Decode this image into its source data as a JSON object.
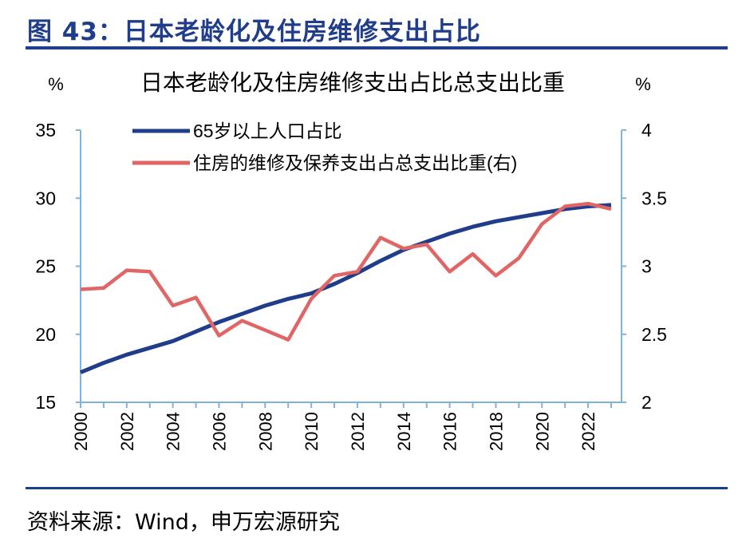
{
  "figure": {
    "title": "图 43：日本老龄化及住房维修支出占比",
    "source": "资料来源：Wind，申万宏源研究"
  },
  "chart_data": {
    "type": "line",
    "title": "日本老龄化及住房维修支出占比总支出比重",
    "left_unit": "%",
    "right_unit": "%",
    "x": [
      2000,
      2001,
      2002,
      2003,
      2004,
      2005,
      2006,
      2007,
      2008,
      2009,
      2010,
      2011,
      2012,
      2013,
      2014,
      2015,
      2016,
      2017,
      2018,
      2019,
      2020,
      2021,
      2022,
      2023
    ],
    "x_ticks": [
      "2000",
      "2002",
      "2004",
      "2006",
      "2008",
      "2010",
      "2012",
      "2014",
      "2016",
      "2018",
      "2020",
      "2022"
    ],
    "y_left": {
      "lim": [
        15,
        35
      ],
      "ticks": [
        "15",
        "20",
        "25",
        "30",
        "35"
      ]
    },
    "y_right": {
      "lim": [
        2,
        4
      ],
      "ticks": [
        "2",
        "2.5",
        "3",
        "3.5",
        "4"
      ]
    },
    "series": [
      {
        "name": "65岁以上人口占比",
        "axis": "left",
        "color": "#1f3d8a",
        "values": [
          17.2,
          17.9,
          18.5,
          19.0,
          19.5,
          20.2,
          20.9,
          21.5,
          22.1,
          22.6,
          23.0,
          23.7,
          24.5,
          25.4,
          26.2,
          26.8,
          27.4,
          27.9,
          28.3,
          28.6,
          28.9,
          29.2,
          29.4,
          29.5
        ]
      },
      {
        "name": "住房的维修及保养支出占总支出比重(右)",
        "axis": "right",
        "color": "#e06666",
        "values": [
          2.83,
          2.84,
          2.97,
          2.96,
          2.71,
          2.77,
          2.49,
          2.6,
          2.53,
          2.46,
          2.76,
          2.93,
          2.96,
          3.21,
          3.13,
          3.16,
          2.96,
          3.09,
          2.93,
          3.06,
          3.31,
          3.44,
          3.46,
          3.42
        ]
      }
    ],
    "legend": {
      "placement": "top-left"
    },
    "colors": {
      "axis": "#7fb3d9",
      "title_blue": "#1f3d8a"
    }
  }
}
